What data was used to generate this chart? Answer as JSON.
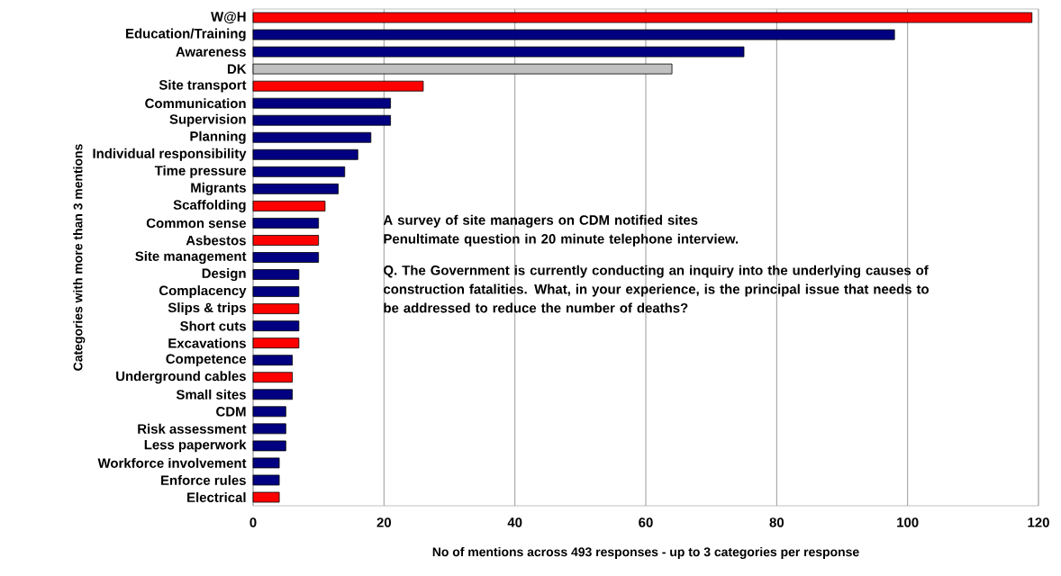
{
  "chart_data": {
    "type": "bar",
    "orientation": "horizontal",
    "xlabel": "No of mentions across 493 responses - up to 3 categories per response",
    "ylabel": "Categories with more than 3 mentions",
    "categories": [
      "W@H",
      "Education/Training",
      "Awareness",
      "DK",
      "Site transport",
      "Communication",
      "Supervision",
      "Planning",
      "Individual responsibility",
      "Time pressure",
      "Migrants",
      "Scaffolding",
      "Common sense",
      "Asbestos",
      "Site management",
      "Design",
      "Complacency",
      "Slips & trips",
      "Short cuts",
      "Excavations",
      "Competence",
      "Underground cables",
      "Small sites",
      "CDM",
      "Risk assessment",
      "Less paperwork",
      "Workforce involvement",
      "Enforce rules",
      "Electrical"
    ],
    "values": [
      119,
      98,
      75,
      64,
      26,
      21,
      21,
      18,
      16,
      14,
      13,
      11,
      10,
      10,
      10,
      7,
      7,
      7,
      7,
      7,
      6,
      6,
      6,
      5,
      5,
      5,
      4,
      4,
      4
    ],
    "colors": [
      "#ff0000",
      "#000080",
      "#000080",
      "#c0c0c0",
      "#ff0000",
      "#000080",
      "#000080",
      "#000080",
      "#000080",
      "#000080",
      "#000080",
      "#ff0000",
      "#000080",
      "#ff0000",
      "#000080",
      "#000080",
      "#000080",
      "#ff0000",
      "#000080",
      "#ff0000",
      "#000080",
      "#ff0000",
      "#000080",
      "#000080",
      "#000080",
      "#000080",
      "#000080",
      "#000080",
      "#ff0000"
    ],
    "xlim": [
      0,
      120
    ],
    "xticks": [
      0,
      20,
      40,
      60,
      80,
      100,
      120
    ],
    "grid": "x",
    "annotations": [
      "A survey of site managers on CDM notified sites",
      "Penultimate question in 20 minute telephone interview.",
      "Q.  The Government is currently conducting an inquiry into the underlying causes of construction fatalities.  What, in your experience, is the principal issue that needs to be addressed to reduce the number of deaths?"
    ]
  }
}
